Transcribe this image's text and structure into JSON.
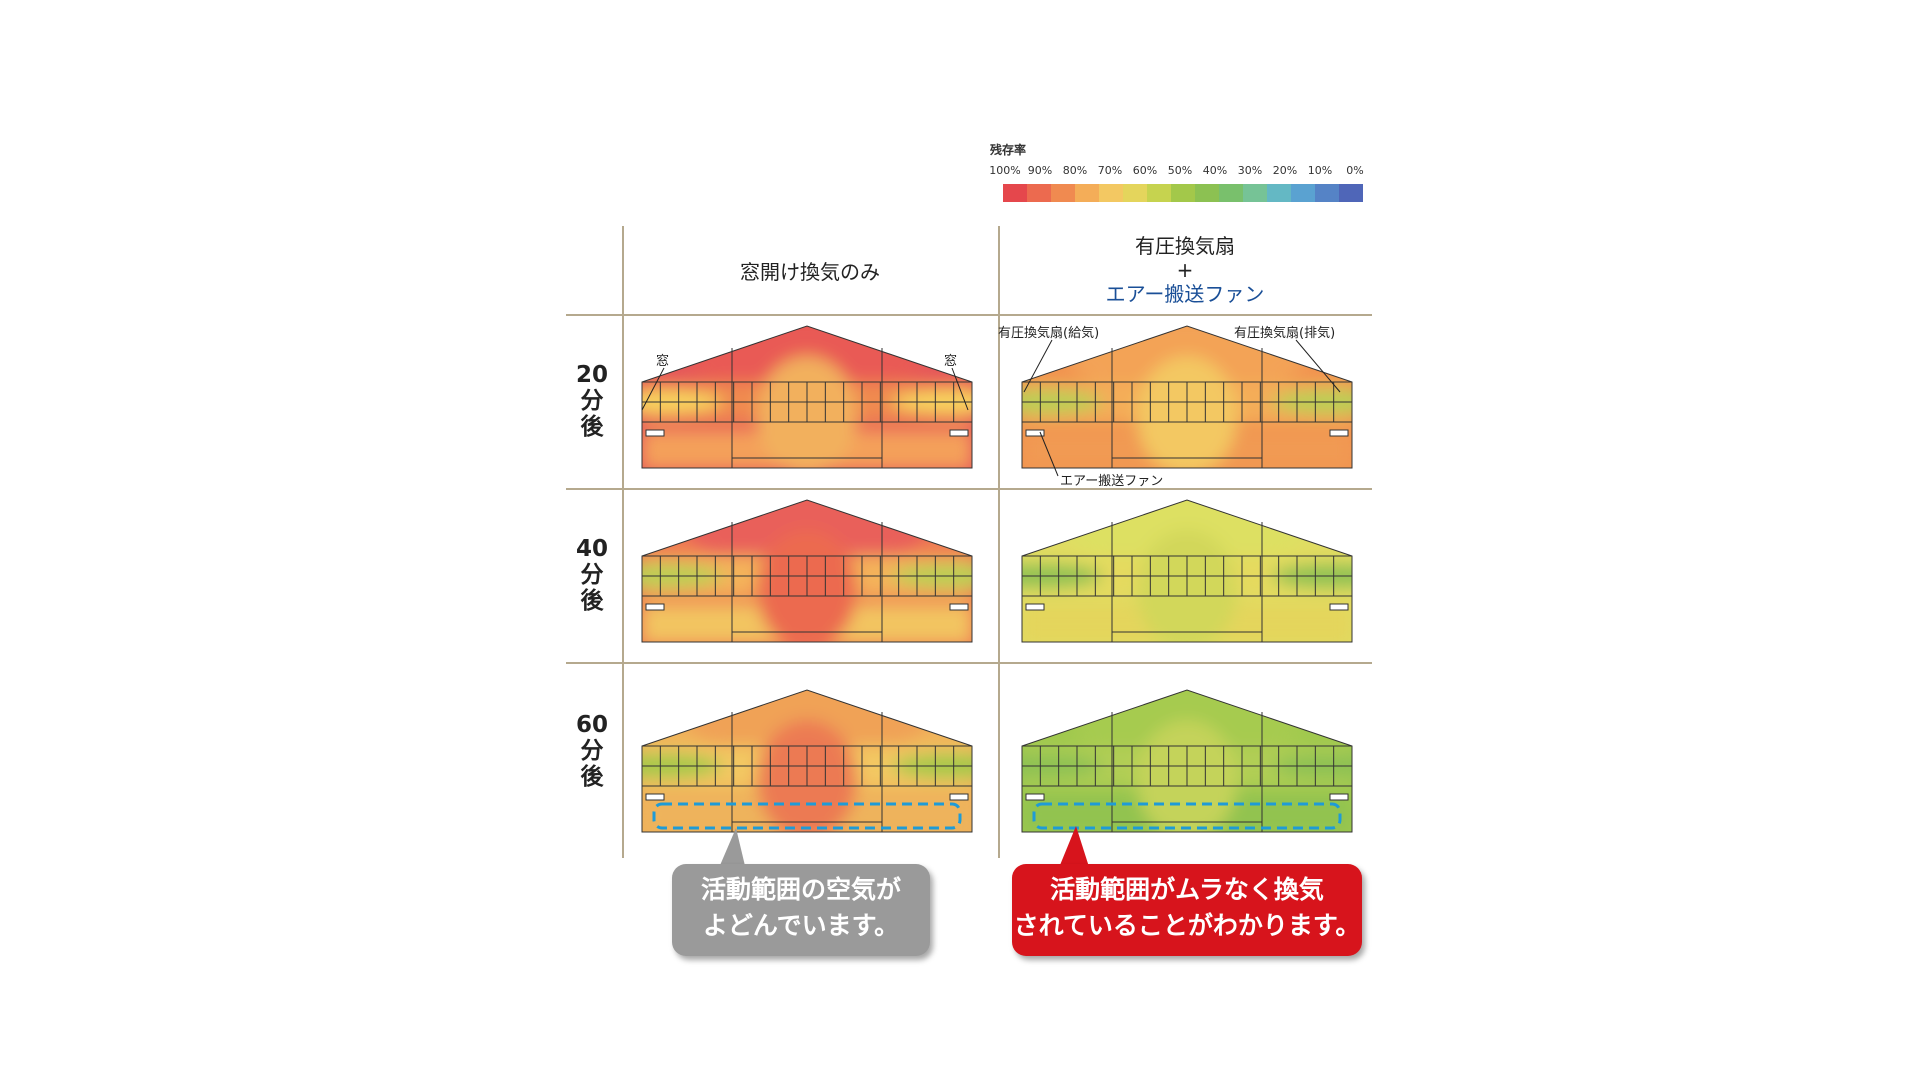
{
  "legend": {
    "title": "残存率",
    "ticks": [
      "100%",
      "90%",
      "80%",
      "70%",
      "60%",
      "50%",
      "40%",
      "30%",
      "20%",
      "10%",
      "0%"
    ],
    "colors": [
      "#e5474c",
      "#ec6a4f",
      "#f08a50",
      "#f4ad58",
      "#f3c862",
      "#e4d55c",
      "#c6d34f",
      "#a3c84a",
      "#8cc152",
      "#79c06c",
      "#76c396",
      "#64b8c4",
      "#5aa2d1",
      "#5583c6",
      "#4f66b8"
    ]
  },
  "columns": {
    "left": "窓開け換気のみ",
    "right_line1": "有圧換気扇",
    "right_plus": "+",
    "right_line2": "エアー搬送ファン"
  },
  "rows": [
    {
      "label": "20分後"
    },
    {
      "label": "40分後"
    },
    {
      "label": "60分後"
    }
  ],
  "annotations": {
    "window_left": "窓",
    "window_right": "窓",
    "fan_supply": "有圧換気扇(給気)",
    "fan_exhaust": "有圧換気扇(排気)",
    "air_fan": "エアー搬送ファン"
  },
  "callouts": {
    "left_line1": "活動範囲の空気が",
    "left_line2": "よどんでいます。",
    "right_line1": "活動範囲がムラなく換気",
    "right_line2": "されていることがわかります。"
  },
  "heatmaps": [
    {
      "panel": "20分後・窓開け換気のみ",
      "base": "#e5565a",
      "upper": "#e95a55",
      "middle": "#f08a50",
      "lower": "#f4a05a",
      "band": "#f7d35e",
      "blob": "#f2b05d"
    },
    {
      "panel": "20分後・有圧換気扇+エアー搬送ファン",
      "base": "#f1924f",
      "upper": "#f3a357",
      "middle": "#f4ad58",
      "lower": "#f19a52",
      "band": "#b9cf54",
      "blob": "#f3c862"
    },
    {
      "panel": "40分後・窓開け換気のみ",
      "base": "#ef7a52",
      "upper": "#e9605a",
      "middle": "#f4b35a",
      "lower": "#f2c460",
      "band": "#b9cf54",
      "blob": "#ec6a4f"
    },
    {
      "panel": "40分後・有圧換気扇+エアー搬送ファン",
      "base": "#e0dc62",
      "upper": "#dde062",
      "middle": "#e5da5e",
      "lower": "#e4d55c",
      "band": "#8cc152",
      "blob": "#d2d75a"
    },
    {
      "panel": "60分後・窓開け換気のみ",
      "base": "#f0b25a",
      "upper": "#f0a256",
      "middle": "#f3c862",
      "lower": "#eeb35c",
      "band": "#a3c84a",
      "blob": "#ec7a52"
    },
    {
      "panel": "60分後・有圧換気扇+エアー搬送ファン",
      "base": "#9ec84d",
      "upper": "#a6cb50",
      "middle": "#b1ce55",
      "lower": "#92c350",
      "band": "#8cc152",
      "blob": "#c4d35a"
    }
  ]
}
